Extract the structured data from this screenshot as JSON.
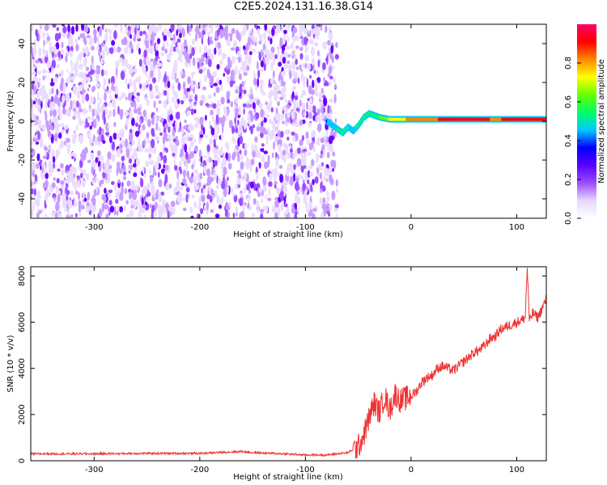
{
  "title": "C2E5.2024.131.16.38.G14",
  "chart_data": [
    {
      "type": "heatmap",
      "xlabel": "Height of straight line (km)",
      "ylabel": "Frequency (Hz)",
      "xlim": [
        -360,
        128
      ],
      "ylim": [
        -50,
        50
      ],
      "x_ticks": [
        -300,
        -200,
        -100,
        0,
        100
      ],
      "y_ticks": [
        -40,
        -20,
        0,
        20,
        40
      ],
      "colorbar": {
        "label": "Normalized spectral amplitude",
        "range": [
          0,
          1
        ],
        "ticks": [
          0.0,
          0.2,
          0.4,
          0.6,
          0.8
        ],
        "colors": [
          "#ffffff",
          "#e8d6ff",
          "#9b4dff",
          "#5a00ff",
          "#0000ff",
          "#00c8ff",
          "#00ff66",
          "#66ff00",
          "#ffff00",
          "#ff8800",
          "#ff0000",
          "#ff0066"
        ]
      },
      "noise_region": {
        "x_range": [
          -360,
          -70
        ],
        "level": 0.3
      },
      "carrier_trace": [
        {
          "x": -80,
          "y": 0,
          "v": 0.4
        },
        {
          "x": -75,
          "y": -2,
          "v": 0.45
        },
        {
          "x": -70,
          "y": -4,
          "v": 0.5
        },
        {
          "x": -65,
          "y": -6,
          "v": 0.55
        },
        {
          "x": -60,
          "y": -3,
          "v": 0.5
        },
        {
          "x": -55,
          "y": -5,
          "v": 0.45
        },
        {
          "x": -50,
          "y": -2,
          "v": 0.55
        },
        {
          "x": -45,
          "y": 2,
          "v": 0.5
        },
        {
          "x": -40,
          "y": 4,
          "v": 0.55
        },
        {
          "x": -35,
          "y": 3,
          "v": 0.5
        },
        {
          "x": -30,
          "y": 2,
          "v": 0.6
        },
        {
          "x": -20,
          "y": 1,
          "v": 0.7
        },
        {
          "x": -10,
          "y": 1,
          "v": 0.75
        },
        {
          "x": 0,
          "y": 1,
          "v": 0.8
        },
        {
          "x": 20,
          "y": 1,
          "v": 0.85
        },
        {
          "x": 40,
          "y": 1,
          "v": 0.9
        },
        {
          "x": 60,
          "y": 1,
          "v": 0.9
        },
        {
          "x": 80,
          "y": 1,
          "v": 0.85
        },
        {
          "x": 100,
          "y": 1,
          "v": 0.9
        },
        {
          "x": 128,
          "y": 1,
          "v": 0.9
        }
      ]
    },
    {
      "type": "line",
      "xlabel": "Height of straight line (km)",
      "ylabel": "SNR (10 * v/v)",
      "xlim": [
        -360,
        128
      ],
      "ylim": [
        0,
        8400
      ],
      "x_ticks": [
        -300,
        -200,
        -100,
        0,
        100
      ],
      "y_ticks": [
        0,
        2000,
        4000,
        6000,
        8000
      ],
      "color": "#ee3333",
      "x": [
        -360,
        -300,
        -250,
        -200,
        -160,
        -150,
        -120,
        -100,
        -80,
        -60,
        -50,
        -45,
        -40,
        -35,
        -30,
        -25,
        -20,
        -15,
        -10,
        -5,
        0,
        5,
        10,
        15,
        20,
        25,
        30,
        40,
        50,
        60,
        65,
        70,
        75,
        80,
        85,
        90,
        95,
        100,
        105,
        108,
        110,
        112,
        115,
        120,
        128
      ],
      "y": [
        300,
        300,
        320,
        320,
        400,
        350,
        300,
        250,
        250,
        350,
        600,
        1100,
        1800,
        2500,
        2100,
        2800,
        2200,
        2900,
        2600,
        2700,
        2800,
        3000,
        3400,
        3600,
        3700,
        4000,
        4100,
        3900,
        4300,
        4700,
        4800,
        5000,
        5300,
        5400,
        5700,
        5800,
        5900,
        6000,
        6100,
        6200,
        8400,
        6000,
        6400,
        6200,
        7000
      ]
    }
  ]
}
